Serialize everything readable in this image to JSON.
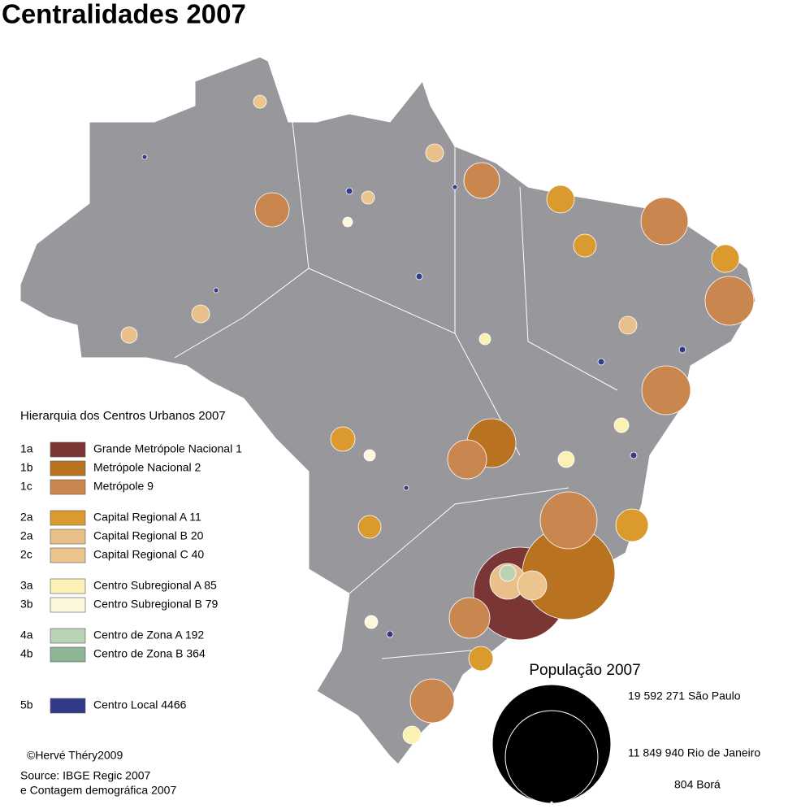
{
  "title": "Centralidades 2007",
  "legend": {
    "title": "Hierarquia dos Centros Urbanos 2007",
    "items": [
      {
        "code": "1a",
        "label": "Grande Metrópole Nacional 1",
        "color": "#7a3535"
      },
      {
        "code": "1b",
        "label": "Metrópole Nacional 2",
        "color": "#b87220"
      },
      {
        "code": "1c",
        "label": "Metrópole 9",
        "color": "#c9874f"
      },
      {
        "code": "2a",
        "label": "Capital Regional A 11",
        "color": "#da9a2e"
      },
      {
        "code": "2a",
        "label": "Capital Regional B 20",
        "color": "#e9c08a"
      },
      {
        "code": "2c",
        "label": "Capital Regional C 40",
        "color": "#ecc48e"
      },
      {
        "code": "3a",
        "label": "Centro Subregional A 85",
        "color": "#fbf1b5"
      },
      {
        "code": "3b",
        "label": "Centro Subregional B 79",
        "color": "#fdf8dc"
      },
      {
        "code": "4a",
        "label": "Centro de Zona A 192",
        "color": "#b9d3b4"
      },
      {
        "code": "4b",
        "label": "Centro de Zona B 364",
        "color": "#8eb595"
      },
      {
        "code": "5b",
        "label": "Centro Local 4466",
        "color": "#333a8a"
      }
    ]
  },
  "size_legend": {
    "title": "População 2007",
    "items": [
      "19 592 271 São Paulo",
      "11 849 940 Rio de Janeiro",
      "804 Borá"
    ]
  },
  "credits": [
    "©Hervé Théry2009",
    "Source: IBGE Regic 2007",
    "e Contagem demográfica 2007"
  ]
}
